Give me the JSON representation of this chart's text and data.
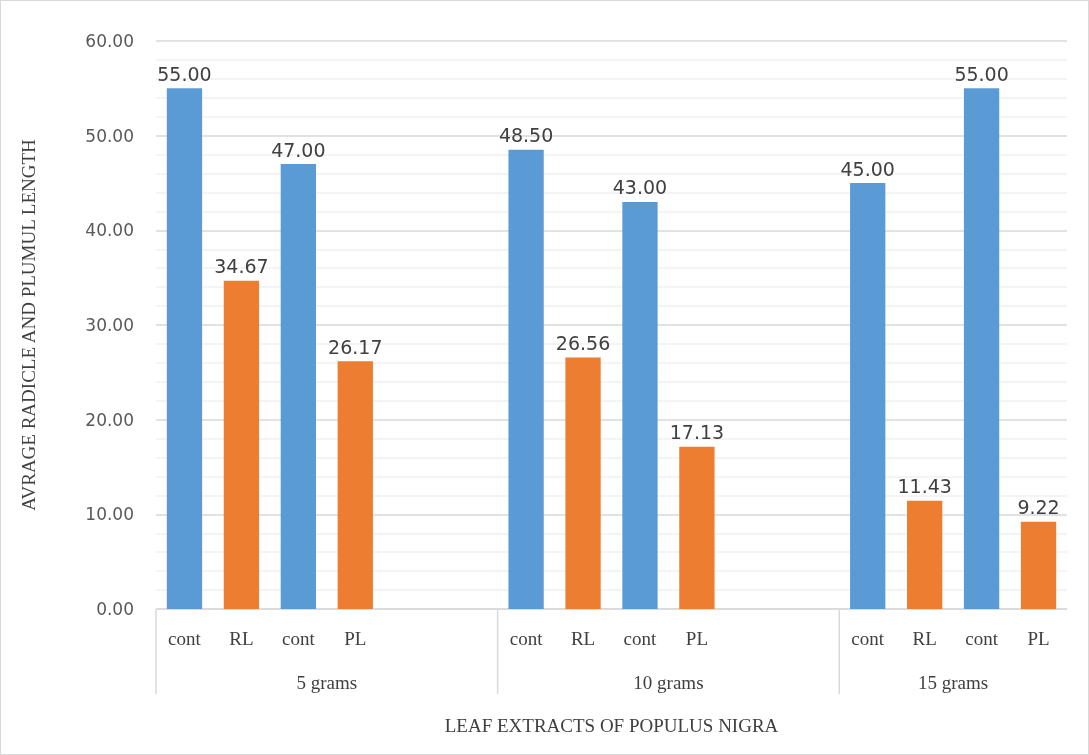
{
  "chart_data": {
    "type": "bar",
    "xlabel": "LEAF EXTRACTS OF POPULUS NIGRA",
    "ylabel": "AVRAGE RADICLE AND PLUMUL LENGTH",
    "categories": [
      "cont",
      "RL",
      "cont",
      "PL",
      null,
      null,
      "cont",
      "RL",
      "cont",
      "PL",
      null,
      null,
      "cont",
      "RL",
      "cont",
      "PL"
    ],
    "values": [
      55.0,
      34.67,
      47.0,
      26.17,
      null,
      null,
      48.5,
      26.56,
      43.0,
      17.13,
      null,
      null,
      45.0,
      11.43,
      55.0,
      9.22
    ],
    "colors": [
      "#5b9bd5",
      "#ed7d31",
      "#5b9bd5",
      "#ed7d31",
      null,
      null,
      "#5b9bd5",
      "#ed7d31",
      "#5b9bd5",
      "#ed7d31",
      null,
      null,
      "#5b9bd5",
      "#ed7d31",
      "#5b9bd5",
      "#ed7d31"
    ],
    "value_labels": [
      "55.00",
      "34.67",
      "47.00",
      "26.17",
      null,
      null,
      "48.50",
      "26.56",
      "43.00",
      "17.13",
      null,
      null,
      "45.00",
      "11.43",
      "55.00",
      "9.22"
    ],
    "annotations": [
      "5 grams",
      "10 grams",
      "15 grams"
    ],
    "ylim": [
      0,
      60
    ],
    "yticks": [
      {
        "value": 0,
        "label": "0.00"
      },
      {
        "value": 10,
        "label": "10.00"
      },
      {
        "value": 20,
        "label": "20.00"
      },
      {
        "value": 30,
        "label": "30.00"
      },
      {
        "value": 40,
        "label": "40.00"
      },
      {
        "value": 50,
        "label": "50.00"
      },
      {
        "value": 60,
        "label": "60.00"
      }
    ],
    "grid": "y"
  }
}
